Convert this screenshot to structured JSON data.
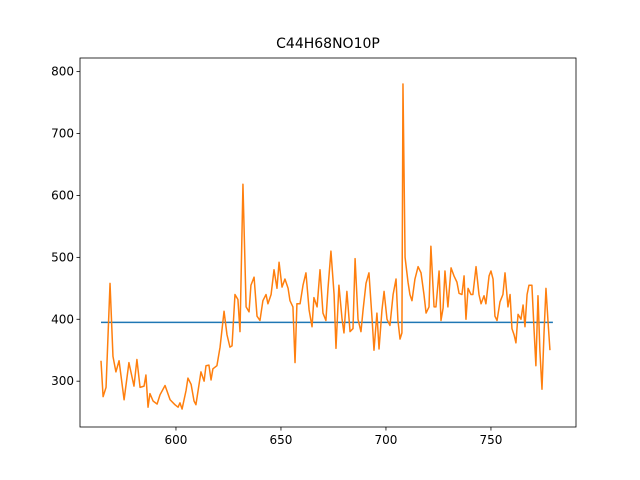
{
  "chart_data": {
    "type": "line",
    "title": "C44H68NO10P",
    "xlim": [
      554.3,
      790.5
    ],
    "ylim": [
      226,
      822
    ],
    "xticks": [
      600,
      650,
      700,
      750
    ],
    "yticks": [
      300,
      400,
      500,
      600,
      700,
      800
    ],
    "series": [
      {
        "color": "#1f77b4",
        "x": [
          564.3,
          779.5
        ],
        "values": [
          395,
          395
        ]
      },
      {
        "color": "#ff7f0e",
        "x": [
          564.3,
          565.3,
          566.7,
          568.6,
          570.0,
          571.4,
          572.9,
          575.3,
          577.6,
          580.0,
          581.4,
          582.9,
          584.8,
          585.7,
          586.7,
          587.6,
          589.1,
          591.0,
          592.4,
          594.8,
          597.2,
          599.5,
          601.0,
          601.9,
          602.9,
          604.8,
          605.7,
          607.2,
          608.6,
          609.5,
          611.0,
          611.9,
          613.4,
          614.3,
          615.7,
          616.7,
          617.6,
          619.5,
          621.0,
          622.9,
          624.3,
          625.7,
          626.7,
          628.1,
          629.5,
          630.5,
          631.9,
          633.4,
          634.8,
          635.7,
          637.2,
          638.6,
          640.0,
          641.4,
          642.9,
          643.8,
          645.3,
          646.7,
          648.1,
          649.1,
          650.5,
          651.9,
          653.4,
          654.3,
          655.7,
          656.7,
          657.6,
          659.1,
          660.5,
          661.9,
          663.4,
          664.8,
          665.7,
          667.2,
          668.6,
          670.0,
          671.4,
          672.4,
          673.8,
          675.3,
          676.2,
          677.6,
          679.1,
          680.0,
          681.4,
          682.9,
          684.3,
          685.3,
          686.7,
          688.1,
          689.1,
          690.5,
          691.9,
          693.4,
          694.3,
          695.7,
          696.7,
          698.1,
          699.1,
          700.5,
          701.9,
          703.4,
          704.8,
          705.7,
          706.7,
          707.6,
          708.1,
          709.1,
          710.5,
          711.4,
          712.4,
          713.8,
          715.3,
          716.7,
          718.1,
          719.1,
          720.5,
          721.4,
          722.9,
          723.8,
          725.3,
          726.2,
          727.2,
          728.1,
          729.5,
          731.0,
          732.4,
          733.8,
          734.8,
          736.2,
          737.2,
          738.1,
          739.1,
          740.5,
          741.4,
          742.9,
          744.3,
          745.3,
          746.7,
          747.6,
          749.1,
          750.0,
          751.0,
          751.9,
          752.9,
          754.3,
          755.7,
          756.7,
          758.1,
          759.1,
          760.0,
          761.0,
          761.9,
          762.9,
          764.3,
          765.3,
          766.2,
          767.2,
          768.1,
          769.5,
          770.5,
          771.4,
          772.4,
          773.3,
          774.3,
          775.3,
          776.2,
          777.2,
          778.1
        ],
        "values": [
          333,
          275,
          290,
          458,
          340,
          315,
          333,
          270,
          330,
          292,
          335,
          290,
          292,
          310,
          258,
          280,
          268,
          263,
          278,
          293,
          270,
          262,
          258,
          265,
          255,
          285,
          305,
          295,
          268,
          262,
          295,
          315,
          300,
          325,
          326,
          302,
          320,
          325,
          355,
          413,
          375,
          355,
          357,
          440,
          432,
          380,
          618,
          420,
          412,
          455,
          468,
          405,
          398,
          430,
          440,
          425,
          440,
          480,
          450,
          492,
          452,
          465,
          450,
          430,
          420,
          330,
          425,
          425,
          455,
          475,
          415,
          388,
          435,
          420,
          480,
          410,
          398,
          450,
          510,
          440,
          353,
          455,
          400,
          378,
          445,
          380,
          385,
          498,
          400,
          380,
          415,
          458,
          475,
          400,
          350,
          410,
          352,
          415,
          445,
          400,
          390,
          440,
          465,
          398,
          368,
          378,
          780,
          500,
          460,
          440,
          430,
          465,
          485,
          475,
          440,
          410,
          420,
          518,
          420,
          420,
          478,
          398,
          418,
          478,
          420,
          483,
          470,
          460,
          442,
          440,
          470,
          400,
          450,
          440,
          440,
          485,
          440,
          425,
          438,
          425,
          470,
          478,
          465,
          405,
          398,
          428,
          440,
          475,
          420,
          440,
          385,
          375,
          362,
          408,
          400,
          423,
          388,
          440,
          455,
          455,
          385,
          325,
          438,
          350,
          287,
          380,
          450,
          395,
          350
        ]
      }
    ]
  }
}
